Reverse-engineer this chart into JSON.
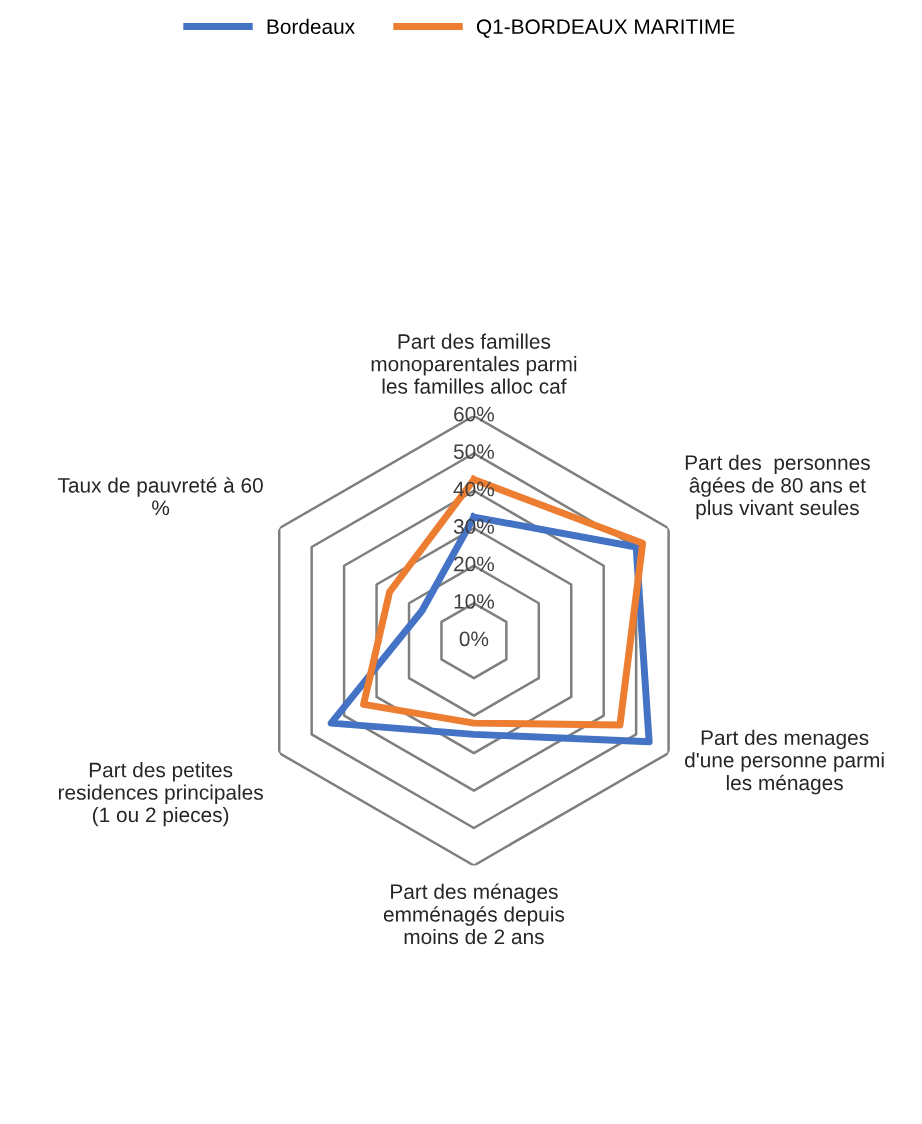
{
  "chart_data": {
    "type": "radar",
    "categories": [
      "Part des familles\nmonoparentales parmi\nles familles alloc caf",
      "Part des  personnes\nâgées de 80 ans et\nplus vivant seules",
      "Part des menages\nd'une personne parmi\nles ménages",
      "Part des ménages\nemménagés depuis\nmoins de 2 ans",
      "Part des petites\nresidences principales\n(1 ou 2 pieces)",
      "Taux de pauvreté à 60\n%"
    ],
    "series": [
      {
        "name": "Bordeaux",
        "color": "#4472c4",
        "values": [
          33,
          50,
          54,
          25,
          44,
          16
        ]
      },
      {
        "name": "Q1-BORDEAUX MARITIME",
        "color": "#ed7d31",
        "values": [
          43,
          52,
          45,
          22,
          34,
          26
        ]
      }
    ],
    "ylim": [
      0,
      60
    ],
    "yticks": [
      {
        "value": 0,
        "label": "0%"
      },
      {
        "value": 10,
        "label": "10%"
      },
      {
        "value": 20,
        "label": "20%"
      },
      {
        "value": 30,
        "label": "30%"
      },
      {
        "value": 40,
        "label": "40%"
      },
      {
        "value": 50,
        "label": "50%"
      },
      {
        "value": 60,
        "label": "60%"
      }
    ],
    "legend": "top"
  }
}
